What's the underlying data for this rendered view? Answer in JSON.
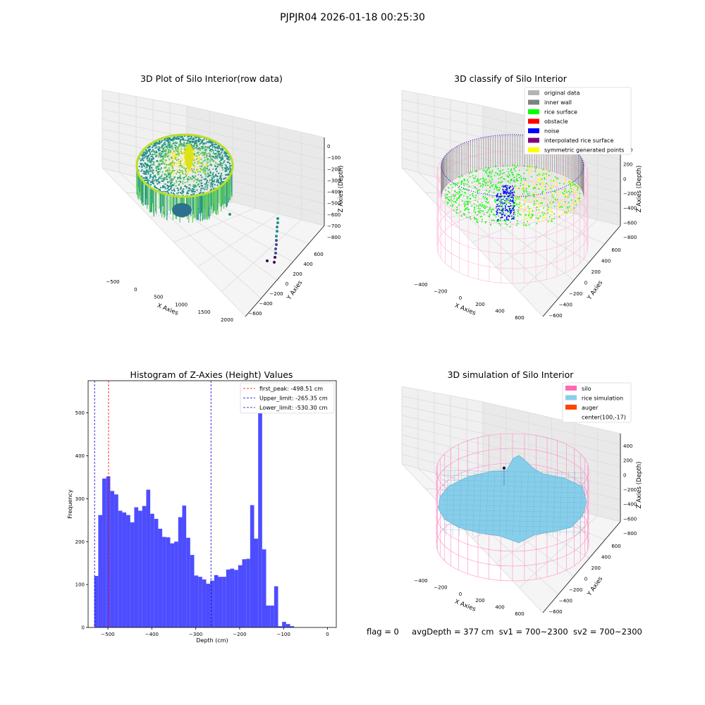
{
  "figure_title": "PJPJR04 2026-01-18 00:25:30",
  "colors": {
    "hist_bar": "#4d4dff",
    "first_peak": "#ff0000",
    "limit": "#0000cc",
    "viridis": [
      "#440154",
      "#3b528b",
      "#21918c",
      "#5ec962",
      "#fde725"
    ],
    "rice_surface": "#00ff00",
    "noise": "#0000ff",
    "obstacle": "#ff0000",
    "inner_wall": "#808080",
    "original": "#b4b4b4",
    "interp": "#800080",
    "symmetric": "#ffff00",
    "silo": "#ff69b4",
    "rice_sim": "#87ceeb",
    "auger": "#ff4500"
  },
  "chart_data": [
    {
      "type": "scatter",
      "title": "3D Plot of Silo Interior(row data)",
      "xlabel": "X Axies",
      "ylabel": "Y Axies",
      "zlabel": "Z Axies (Depth)",
      "x_ticks": [
        "−500",
        "0",
        "500",
        "1000",
        "1500",
        "2000"
      ],
      "y_ticks": [
        "600",
        "400",
        "200",
        "0",
        "−200",
        "−400",
        "−600"
      ],
      "z_ticks": [
        "0",
        "−100",
        "−200",
        "−300",
        "−400",
        "−500",
        "−600",
        "−700",
        "−800"
      ],
      "xlim": [
        -700,
        2100
      ],
      "ylim": [
        -650,
        650
      ],
      "zlim": [
        -850,
        0
      ]
    },
    {
      "type": "scatter",
      "title": "3D classify of Silo Interior",
      "xlabel": "X Axies",
      "ylabel": "Y Axies",
      "zlabel": "Z Axies (Depth)",
      "x_ticks": [
        "−400",
        "−200",
        "0",
        "200",
        "400",
        "600"
      ],
      "y_ticks": [
        "600",
        "400",
        "200",
        "0",
        "−200",
        "−400",
        "−600"
      ],
      "z_ticks": [
        "400",
        "200",
        "0",
        "−200",
        "−400",
        "−600",
        "−800"
      ],
      "legend": {
        "position": "upper right",
        "entries": [
          {
            "label": "original data",
            "color": "#b4b4b4"
          },
          {
            "label": "inner wall",
            "color": "#808080"
          },
          {
            "label": "rice surface",
            "color": "#00ff00"
          },
          {
            "label": "obstacle",
            "color": "#ff0000"
          },
          {
            "label": "noise",
            "color": "#0000ff"
          },
          {
            "label": "interpolated rice surface",
            "color": "#800080"
          },
          {
            "label": "symmetric generated points",
            "color": "#ffff00"
          }
        ]
      }
    },
    {
      "type": "bar",
      "title": "Histogram of Z-Axies (Height) Values",
      "xlabel": "Depth (cm)",
      "ylabel": "Frequency",
      "xlim": [
        -545,
        20
      ],
      "ylim": [
        0,
        575
      ],
      "x_ticks": [
        -500,
        -400,
        -300,
        -200,
        -100,
        0
      ],
      "y_ticks": [
        0,
        100,
        200,
        300,
        400,
        500
      ],
      "bin_start": -531,
      "bin_width": 9.1,
      "values": [
        120,
        262,
        347,
        352,
        318,
        310,
        272,
        268,
        262,
        245,
        280,
        272,
        283,
        321,
        265,
        253,
        230,
        211,
        210,
        196,
        200,
        257,
        284,
        209,
        169,
        121,
        118,
        112,
        102,
        109,
        122,
        118,
        118,
        135,
        137,
        134,
        145,
        159,
        160,
        285,
        207,
        545,
        182,
        51,
        51,
        96,
        3,
        13,
        8,
        3
      ],
      "vlines": [
        {
          "label": "first_peak: -498.51 cm",
          "x": -498.51,
          "color": "#ff0000"
        },
        {
          "label": "Upper_limit: -265.35 cm",
          "x": -265.35,
          "color": "#0000cc"
        },
        {
          "label": "Lower_limit: -530.30 cm",
          "x": -530.3,
          "color": "#0000cc"
        }
      ],
      "legend": {
        "position": "upper right"
      }
    },
    {
      "type": "surface",
      "title": "3D simulation of Silo Interior",
      "xlabel": "X Axies",
      "ylabel": "Y Axies",
      "zlabel": "Z Axies (Depth)",
      "x_ticks": [
        "−400",
        "−200",
        "0",
        "200",
        "400",
        "600"
      ],
      "y_ticks": [
        "600",
        "400",
        "200",
        "0",
        "−200",
        "−400",
        "−600"
      ],
      "z_ticks": [
        "400",
        "200",
        "0",
        "−200",
        "−400",
        "−600",
        "−800"
      ],
      "legend": {
        "position": "upper right",
        "entries": [
          {
            "label": "silo",
            "color": "#ff69b4"
          },
          {
            "label": "rice simulation",
            "color": "#87ceeb"
          },
          {
            "label": "auger",
            "color": "#ff4500"
          },
          {
            "label": "center(100,-17)",
            "color": ""
          }
        ]
      }
    }
  ],
  "footer": {
    "flag": "flag = 0",
    "avg_depth": "avgDepth = 377 cm",
    "sv1": "sv1 = 700~2300",
    "sv2": "sv2 = 700~2300"
  }
}
